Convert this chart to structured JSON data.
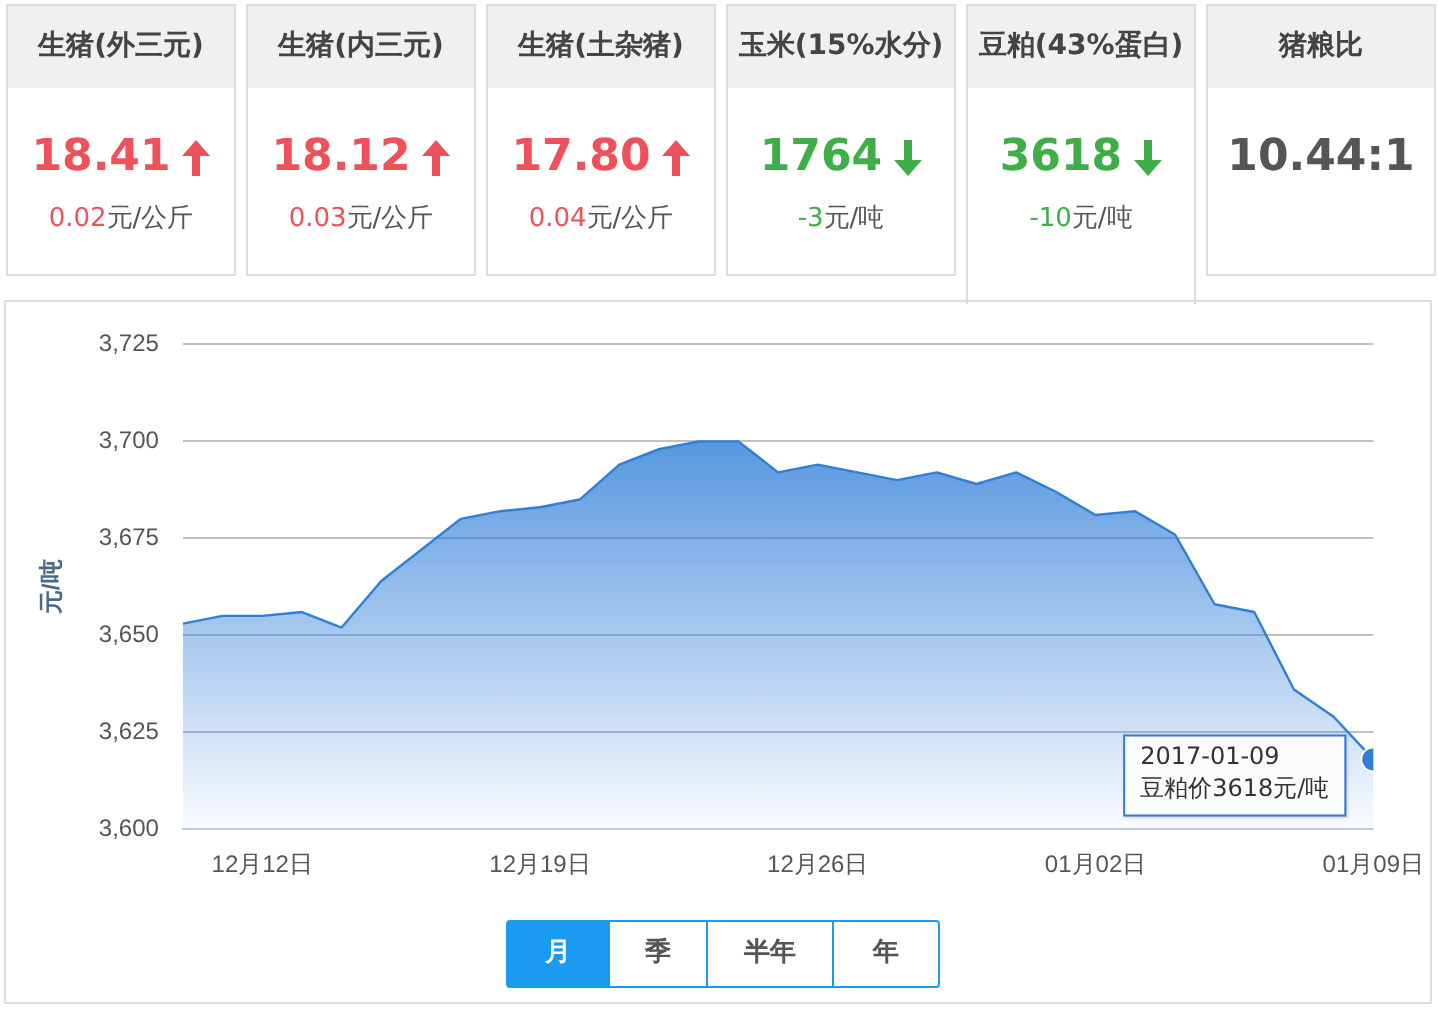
{
  "chart_data": [
    {
      "type": "other",
      "categories": [
        "生猪(外三元)",
        "生猪(内三元)",
        "生猪(土杂猪)",
        "玉米(15%水分)",
        "豆粕(43%蛋白)",
        "猪粮比"
      ],
      "annotations": [
        "18.41",
        "0.02元/公斤",
        "18.12",
        "0.03元/公斤",
        "17.80",
        "0.04元/公斤",
        "1764",
        "-3元/吨",
        "3618",
        "-10元/吨",
        "10.44:1"
      ]
    },
    {
      "type": "area",
      "ylabel": "元/吨",
      "x": [
        "2016-12-10",
        "2016-12-11",
        "2016-12-12",
        "2016-12-13",
        "2016-12-14",
        "2016-12-15",
        "2016-12-16",
        "2016-12-17",
        "2016-12-18",
        "2016-12-19",
        "2016-12-20",
        "2016-12-21",
        "2016-12-22",
        "2016-12-23",
        "2016-12-24",
        "2016-12-25",
        "2016-12-26",
        "2016-12-27",
        "2016-12-28",
        "2016-12-29",
        "2016-12-30",
        "2016-12-31",
        "2017-01-01",
        "2017-01-02",
        "2017-01-03",
        "2017-01-04",
        "2017-01-05",
        "2017-01-06",
        "2017-01-07",
        "2017-01-08",
        "2017-01-09"
      ],
      "series": [
        {
          "color": "#2f7ed8",
          "values": [
            3653,
            3655,
            3655,
            3656,
            3652,
            3664,
            3672,
            3680,
            3682,
            3683,
            3685,
            3694,
            3698,
            3700,
            3700,
            3692,
            3694,
            3692,
            3690,
            3692,
            3689,
            3692,
            3687,
            3681,
            3682,
            3676,
            3658,
            3656,
            3636,
            3629,
            3618
          ]
        }
      ],
      "xlim": [
        "2016-12-10",
        "2017-01-09"
      ],
      "xticks": [
        {
          "value": "2016-12-12",
          "label": "12月12日"
        },
        {
          "value": "2016-12-19",
          "label": "12月19日"
        },
        {
          "value": "2016-12-26",
          "label": "12月26日"
        },
        {
          "value": "2017-01-02",
          "label": "01月02日"
        },
        {
          "value": "2017-01-09",
          "label": "01月09日"
        }
      ],
      "ylim": [
        3600,
        3725
      ],
      "yticks": [
        {
          "value": 3600,
          "label": "3,600"
        },
        {
          "value": 3625,
          "label": "3,625"
        },
        {
          "value": 3650,
          "label": "3,650"
        },
        {
          "value": 3675,
          "label": "3,675"
        },
        {
          "value": 3700,
          "label": "3,700"
        },
        {
          "value": 3725,
          "label": "3,725"
        }
      ],
      "grid": "y",
      "legend": false,
      "marker": "none",
      "annotations": [
        {
          "text": "2017-01-09\n豆粕价3618元/吨",
          "x": "2017-01-09",
          "y": 3618
        },
        "月",
        "季",
        "半年",
        "年"
      ]
    }
  ]
}
